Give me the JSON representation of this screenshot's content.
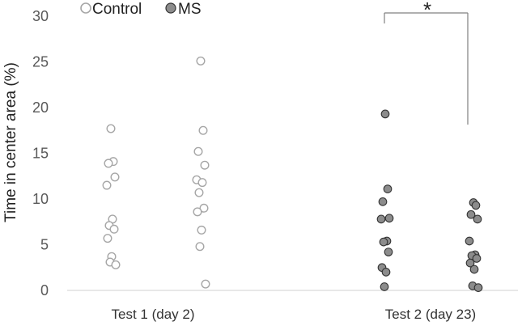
{
  "chart_data": {
    "type": "scatter",
    "title": "",
    "ylabel": "Time in center area (%)",
    "xlabel": "",
    "ylim": [
      0,
      30
    ],
    "yticks": [
      0,
      5,
      10,
      15,
      20,
      25,
      30
    ],
    "categories": [
      "Test 1 (day 2)",
      "Test 2 (day 23)"
    ],
    "grid": false,
    "legend_position": "top-left",
    "series": [
      {
        "name": "Control",
        "marker": "open-circle",
        "color": "#a6a6a6",
        "values": [
          [
            17.7,
            14.1,
            13.9,
            12.4,
            11.5,
            7.8,
            7.1,
            6.7,
            5.7,
            3.7,
            3.1,
            2.8
          ],
          [
            25.1,
            17.5,
            15.2,
            13.7,
            12.1,
            11.8,
            10.7,
            9.0,
            8.6,
            6.6,
            4.8,
            0.7
          ]
        ]
      },
      {
        "name": "MS",
        "marker": "filled-circle",
        "color": "#8c8c8c",
        "values": [
          [
            19.3,
            11.1,
            9.7,
            7.9,
            7.8,
            5.4,
            5.3,
            4.2,
            2.5,
            2.0,
            0.4
          ],
          [
            9.6,
            9.3,
            8.3,
            7.8,
            5.4,
            3.9,
            3.8,
            3.5,
            3.0,
            2.3,
            0.5,
            0.3
          ]
        ]
      }
    ],
    "annotations": [
      {
        "text": "*",
        "between": [
          "Control",
          "MS"
        ],
        "category": "Test 2 (day 23)"
      }
    ]
  }
}
